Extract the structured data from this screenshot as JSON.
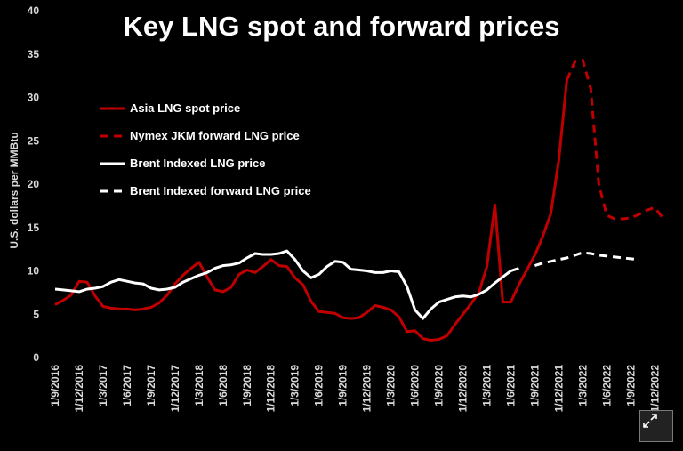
{
  "chart_data": {
    "type": "line",
    "title": "Key LNG spot and forward prices",
    "ylabel": "U.S. dollars per MMBtu",
    "xlabel": "",
    "ylim": [
      0,
      40
    ],
    "yticks": [
      0,
      5,
      10,
      15,
      20,
      25,
      30,
      35,
      40
    ],
    "x_labels": [
      "1/9/2016",
      "1/12/2016",
      "1/3/2017",
      "1/6/2017",
      "1/9/2017",
      "1/12/2017",
      "1/3/2018",
      "1/6/2018",
      "1/9/2018",
      "1/12/2018",
      "1/3/2019",
      "1/6/2019",
      "1/9/2019",
      "1/12/2019",
      "1/3/2020",
      "1/6/2020",
      "1/9/2020",
      "1/12/2020",
      "1/3/2021",
      "1/6/2021",
      "1/9/2021",
      "1/12/2021",
      "1/3/2022",
      "1/6/2022",
      "1/9/2022",
      "1/12/2022"
    ],
    "grid": false,
    "legend_position": "top-left",
    "series": [
      {
        "name": "Asia LNG spot price",
        "color": "#c00000",
        "style": "solid",
        "points": [
          [
            0,
            6.1
          ],
          [
            1,
            6.6
          ],
          [
            2,
            7.2
          ],
          [
            3,
            8.8
          ],
          [
            4,
            8.7
          ],
          [
            5,
            7.1
          ],
          [
            6,
            5.9
          ],
          [
            7,
            5.7
          ],
          [
            8,
            5.6
          ],
          [
            9,
            5.6
          ],
          [
            10,
            5.5
          ],
          [
            11,
            5.6
          ],
          [
            12,
            5.8
          ],
          [
            13,
            6.3
          ],
          [
            14,
            7.2
          ],
          [
            15,
            8.5
          ],
          [
            16,
            9.5
          ],
          [
            17,
            10.3
          ],
          [
            18,
            11.0
          ],
          [
            19,
            9.3
          ],
          [
            20,
            7.8
          ],
          [
            21,
            7.6
          ],
          [
            22,
            8.1
          ],
          [
            23,
            9.6
          ],
          [
            24,
            10.1
          ],
          [
            25,
            9.8
          ],
          [
            26,
            10.5
          ],
          [
            27,
            11.3
          ],
          [
            28,
            10.6
          ],
          [
            29,
            10.5
          ],
          [
            30,
            9.2
          ],
          [
            31,
            8.4
          ],
          [
            32,
            6.5
          ],
          [
            33,
            5.3
          ],
          [
            34,
            5.2
          ],
          [
            35,
            5.1
          ],
          [
            36,
            4.6
          ],
          [
            37,
            4.5
          ],
          [
            38,
            4.6
          ],
          [
            39,
            5.2
          ],
          [
            40,
            6.0
          ],
          [
            41,
            5.8
          ],
          [
            42,
            5.5
          ],
          [
            43,
            4.7
          ],
          [
            44,
            3.0
          ],
          [
            45,
            3.1
          ],
          [
            46,
            2.2
          ],
          [
            47,
            2.0
          ],
          [
            48,
            2.1
          ],
          [
            49,
            2.5
          ],
          [
            50,
            3.8
          ],
          [
            51,
            5.0
          ],
          [
            52,
            6.2
          ],
          [
            53,
            7.5
          ],
          [
            54,
            10.5
          ],
          [
            55,
            17.6
          ],
          [
            56,
            6.4
          ],
          [
            57,
            6.4
          ],
          [
            58,
            8.4
          ],
          [
            59,
            10.1
          ],
          [
            60,
            11.8
          ],
          [
            61,
            14.0
          ],
          [
            62,
            16.6
          ],
          [
            63,
            22.8
          ],
          [
            64,
            32.0
          ]
        ]
      },
      {
        "name": "Nymex JKM forward LNG price",
        "color": "#c00000",
        "style": "dashed",
        "points": [
          [
            64,
            32.0
          ],
          [
            65,
            34.1
          ],
          [
            66,
            34.3
          ],
          [
            67,
            31.0
          ],
          [
            68,
            20.0
          ],
          [
            69,
            16.4
          ],
          [
            70,
            16.0
          ],
          [
            71,
            16.0
          ],
          [
            72,
            16.1
          ],
          [
            73,
            16.5
          ],
          [
            74,
            17.0
          ],
          [
            75,
            17.3
          ],
          [
            76,
            16.1
          ]
        ]
      },
      {
        "name": "Brent Indexed LNG price",
        "color": "#ffffff",
        "style": "solid",
        "points": [
          [
            0,
            7.9
          ],
          [
            1,
            7.8
          ],
          [
            2,
            7.7
          ],
          [
            3,
            7.6
          ],
          [
            4,
            7.9
          ],
          [
            5,
            8.0
          ],
          [
            6,
            8.2
          ],
          [
            7,
            8.7
          ],
          [
            8,
            9.0
          ],
          [
            9,
            8.8
          ],
          [
            10,
            8.6
          ],
          [
            11,
            8.5
          ],
          [
            12,
            8.0
          ],
          [
            13,
            7.8
          ],
          [
            14,
            7.9
          ],
          [
            15,
            8.1
          ],
          [
            16,
            8.7
          ],
          [
            17,
            9.1
          ],
          [
            18,
            9.5
          ],
          [
            19,
            9.8
          ],
          [
            20,
            10.3
          ],
          [
            21,
            10.6
          ],
          [
            22,
            10.7
          ],
          [
            23,
            10.9
          ],
          [
            24,
            11.5
          ],
          [
            25,
            12.0
          ],
          [
            26,
            11.9
          ],
          [
            27,
            11.9
          ],
          [
            28,
            12.0
          ],
          [
            29,
            12.3
          ],
          [
            30,
            11.3
          ],
          [
            31,
            10.0
          ],
          [
            32,
            9.2
          ],
          [
            33,
            9.6
          ],
          [
            34,
            10.5
          ],
          [
            35,
            11.1
          ],
          [
            36,
            11.0
          ],
          [
            37,
            10.2
          ],
          [
            38,
            10.1
          ],
          [
            39,
            10.0
          ],
          [
            40,
            9.8
          ],
          [
            41,
            9.8
          ],
          [
            42,
            10.0
          ],
          [
            43,
            9.9
          ],
          [
            44,
            8.2
          ],
          [
            45,
            5.5
          ],
          [
            46,
            4.5
          ],
          [
            47,
            5.6
          ],
          [
            48,
            6.4
          ],
          [
            49,
            6.7
          ],
          [
            50,
            7.0
          ],
          [
            51,
            7.1
          ],
          [
            52,
            7.0
          ],
          [
            53,
            7.3
          ],
          [
            54,
            7.8
          ],
          [
            55,
            8.6
          ],
          [
            56,
            9.3
          ],
          [
            57,
            10.0
          ],
          [
            58,
            10.3
          ]
        ]
      },
      {
        "name": "Brent Indexed forward LNG price",
        "color": "#ffffff",
        "style": "dashed",
        "points": [
          [
            60,
            10.6
          ],
          [
            61,
            10.9
          ],
          [
            62,
            11.1
          ],
          [
            63,
            11.3
          ],
          [
            64,
            11.5
          ],
          [
            65,
            11.8
          ],
          [
            66,
            12.1
          ],
          [
            67,
            12.0
          ],
          [
            68,
            11.8
          ],
          [
            69,
            11.7
          ],
          [
            70,
            11.6
          ],
          [
            71,
            11.5
          ],
          [
            72,
            11.4
          ],
          [
            73,
            11.3
          ]
        ]
      }
    ]
  },
  "ui": {
    "expand_icon": "expand-arrows-icon"
  }
}
